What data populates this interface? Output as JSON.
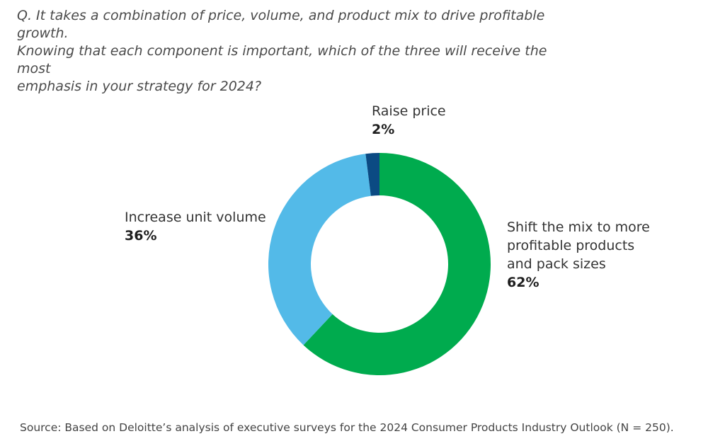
{
  "question": {
    "lines": [
      "Q. It takes a combination of price, volume, and product mix to drive profitable growth.",
      "Knowing that each component is important, which of the three will receive the most",
      "emphasis in your strategy for 2024?"
    ]
  },
  "chart_data": {
    "type": "pie",
    "variant": "donut",
    "title": "",
    "slices": [
      {
        "key": "mix",
        "label_lines": [
          "Shift the mix to more",
          "profitable products",
          "and pack sizes"
        ],
        "value": 62,
        "display": "62%",
        "color": "#00AB4E"
      },
      {
        "key": "volume",
        "label_lines": [
          "Increase unit volume"
        ],
        "value": 36,
        "display": "36%",
        "color": "#53BAE8"
      },
      {
        "key": "price",
        "label_lines": [
          "Raise price"
        ],
        "value": 2,
        "display": "2%",
        "color": "#0B4A83"
      }
    ],
    "start": "12 o'clock, clockwise"
  },
  "source": "Source: Based on Deloitte’s analysis of executive surveys for the 2024 Consumer Products Industry Outlook (N = 250)."
}
